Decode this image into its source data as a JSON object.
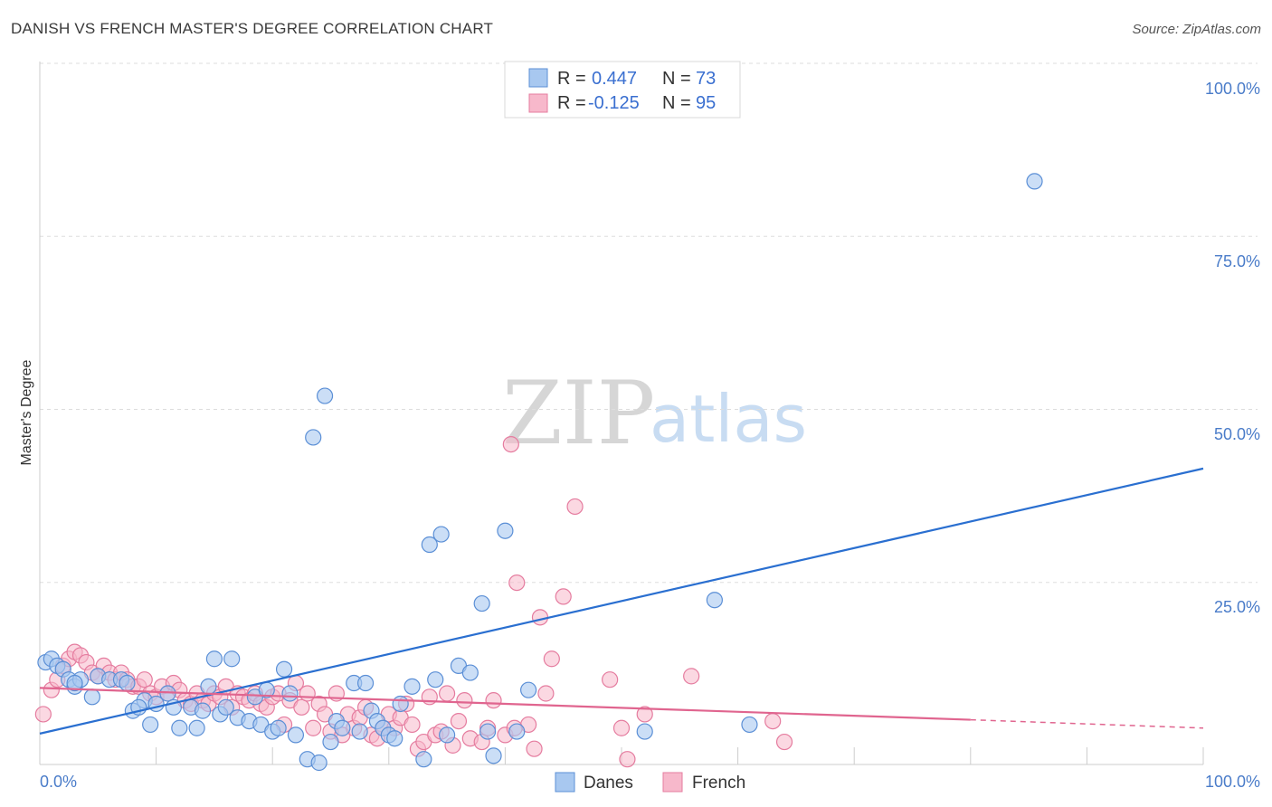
{
  "title": "DANISH VS FRENCH MASTER'S DEGREE CORRELATION CHART",
  "source": "Source: ZipAtlas.com",
  "watermark": {
    "zip": "ZIP",
    "atlas": "atlas"
  },
  "legend": {
    "r_label": "R =",
    "n_label": "N =",
    "danes_r": "0.447",
    "danes_n": "73",
    "french_r": "-0.125",
    "french_n": "95"
  },
  "bottom_legend": {
    "danes": "Danes",
    "french": "French"
  },
  "colors": {
    "danes_fill": "#a8c8f0",
    "danes_stroke": "#5b8fd6",
    "danes_line": "#2a6fd0",
    "french_fill": "#f7b8cb",
    "french_stroke": "#e57c9f",
    "french_line": "#e0658f",
    "axis_text": "#4a7cc9",
    "grid": "#dddddd"
  },
  "chart_data": {
    "type": "scatter",
    "title": "DANISH VS FRENCH MASTER'S DEGREE CORRELATION CHART",
    "xlabel": "",
    "ylabel": "Master's Degree",
    "xlim": [
      0,
      100
    ],
    "ylim": [
      0,
      100
    ],
    "x_tick_labels": [
      "0.0%",
      "100.0%"
    ],
    "y_tick_labels": [
      "100.0%",
      "75.0%",
      "50.0%",
      "25.0%"
    ],
    "y_ticks": [
      100,
      75,
      50,
      25
    ],
    "grid": true,
    "legend_position": "top-center",
    "series": [
      {
        "name": "Danes",
        "r": 0.447,
        "n": 73,
        "trend": {
          "x": [
            0,
            100
          ],
          "y": [
            4.2,
            42.5
          ]
        },
        "points": [
          [
            0.5,
            14.5
          ],
          [
            1,
            15
          ],
          [
            1.5,
            14
          ],
          [
            2,
            13.5
          ],
          [
            2.5,
            12
          ],
          [
            3,
            11
          ],
          [
            3.5,
            12
          ],
          [
            4.5,
            9.5
          ],
          [
            5,
            12.5
          ],
          [
            6,
            12
          ],
          [
            7,
            12
          ],
          [
            7.5,
            11.5
          ],
          [
            8,
            7.5
          ],
          [
            9,
            9
          ],
          [
            8.5,
            8
          ],
          [
            9.5,
            5.5
          ],
          [
            10,
            8.5
          ],
          [
            11,
            10
          ],
          [
            11.5,
            8
          ],
          [
            12,
            5
          ],
          [
            13,
            8
          ],
          [
            13.5,
            5
          ],
          [
            14,
            7.5
          ],
          [
            14.5,
            11
          ],
          [
            15,
            15
          ],
          [
            15.5,
            7
          ],
          [
            16,
            8
          ],
          [
            16.5,
            15
          ],
          [
            17,
            6.5
          ],
          [
            18,
            6
          ],
          [
            18.5,
            9.5
          ],
          [
            19,
            5.5
          ],
          [
            19.5,
            10.5
          ],
          [
            20,
            4.5
          ],
          [
            20.5,
            5
          ],
          [
            21,
            13.5
          ],
          [
            21.5,
            10
          ],
          [
            22,
            4
          ],
          [
            23,
            0.5
          ],
          [
            23.5,
            47
          ],
          [
            24,
            0
          ],
          [
            24.5,
            53
          ],
          [
            25,
            3
          ],
          [
            25.5,
            6
          ],
          [
            26,
            5
          ],
          [
            27,
            11.5
          ],
          [
            27.5,
            4.5
          ],
          [
            28,
            11.5
          ],
          [
            28.5,
            7.5
          ],
          [
            29,
            6
          ],
          [
            29.5,
            5
          ],
          [
            30,
            4
          ],
          [
            30.5,
            3.5
          ],
          [
            31,
            8.5
          ],
          [
            32,
            11
          ],
          [
            33,
            0.5
          ],
          [
            33.5,
            31.5
          ],
          [
            34,
            12
          ],
          [
            34.5,
            33
          ],
          [
            35,
            4
          ],
          [
            36,
            14
          ],
          [
            37,
            13
          ],
          [
            38,
            23
          ],
          [
            38.5,
            4.5
          ],
          [
            39,
            1
          ],
          [
            40,
            33.5
          ],
          [
            41,
            4.5
          ],
          [
            42,
            10.5
          ],
          [
            52,
            4.5
          ],
          [
            58,
            23.5
          ],
          [
            85.5,
            84
          ],
          [
            61,
            5.5
          ],
          [
            3,
            11.5
          ]
        ]
      },
      {
        "name": "French",
        "r": -0.125,
        "n": 95,
        "trend": {
          "x": [
            0,
            80
          ],
          "y": [
            10.8,
            6.2
          ],
          "dashed_to": [
            100,
            5.0
          ]
        },
        "points": [
          [
            0.3,
            7
          ],
          [
            1,
            10.5
          ],
          [
            1.5,
            12
          ],
          [
            2,
            14
          ],
          [
            2.5,
            15
          ],
          [
            3,
            16
          ],
          [
            3.5,
            15.5
          ],
          [
            4,
            14.5
          ],
          [
            4.5,
            13
          ],
          [
            5,
            12.5
          ],
          [
            5.5,
            14
          ],
          [
            6,
            13
          ],
          [
            6.5,
            12
          ],
          [
            7,
            13
          ],
          [
            7.5,
            12
          ],
          [
            8,
            11
          ],
          [
            8.5,
            11
          ],
          [
            9,
            12
          ],
          [
            9.5,
            10
          ],
          [
            10,
            9.5
          ],
          [
            10.5,
            11
          ],
          [
            11,
            10
          ],
          [
            11.5,
            11.5
          ],
          [
            12,
            10.5
          ],
          [
            12.5,
            9
          ],
          [
            13,
            8.5
          ],
          [
            13.5,
            10
          ],
          [
            14,
            9
          ],
          [
            14.5,
            8.5
          ],
          [
            15,
            10
          ],
          [
            15.5,
            9.5
          ],
          [
            16,
            11
          ],
          [
            16.5,
            8
          ],
          [
            17,
            10
          ],
          [
            17.5,
            9.5
          ],
          [
            18,
            9
          ],
          [
            18.5,
            10
          ],
          [
            19,
            8.5
          ],
          [
            19.5,
            8
          ],
          [
            20,
            9.5
          ],
          [
            20.5,
            10
          ],
          [
            21,
            5.5
          ],
          [
            21.5,
            9
          ],
          [
            22,
            11.5
          ],
          [
            22.5,
            8
          ],
          [
            23,
            10
          ],
          [
            23.5,
            5
          ],
          [
            24,
            8.5
          ],
          [
            24.5,
            7
          ],
          [
            25,
            4.5
          ],
          [
            25.5,
            10
          ],
          [
            26,
            4
          ],
          [
            26.5,
            7
          ],
          [
            27,
            5
          ],
          [
            27.5,
            6.5
          ],
          [
            28,
            8
          ],
          [
            28.5,
            4
          ],
          [
            29,
            3.5
          ],
          [
            29.5,
            5
          ],
          [
            30,
            7
          ],
          [
            30.5,
            5
          ],
          [
            31,
            6.5
          ],
          [
            31.5,
            8.5
          ],
          [
            32,
            5.5
          ],
          [
            32.5,
            2
          ],
          [
            33,
            3
          ],
          [
            33.5,
            9.5
          ],
          [
            34,
            4
          ],
          [
            34.5,
            4.5
          ],
          [
            35,
            10
          ],
          [
            35.5,
            2.5
          ],
          [
            36,
            6
          ],
          [
            36.5,
            9
          ],
          [
            37,
            3.5
          ],
          [
            38,
            3
          ],
          [
            38.5,
            5
          ],
          [
            39,
            9
          ],
          [
            40,
            4
          ],
          [
            40.5,
            46
          ],
          [
            41,
            26
          ],
          [
            42,
            5.5
          ],
          [
            42.5,
            2
          ],
          [
            43,
            21
          ],
          [
            43.5,
            10
          ],
          [
            44,
            15
          ],
          [
            45,
            24
          ],
          [
            46,
            37
          ],
          [
            49,
            12
          ],
          [
            50,
            5
          ],
          [
            50.5,
            0.5
          ],
          [
            52,
            7
          ],
          [
            56,
            12.5
          ],
          [
            63,
            6
          ],
          [
            64,
            3
          ],
          [
            40.8,
            5
          ]
        ]
      }
    ]
  }
}
